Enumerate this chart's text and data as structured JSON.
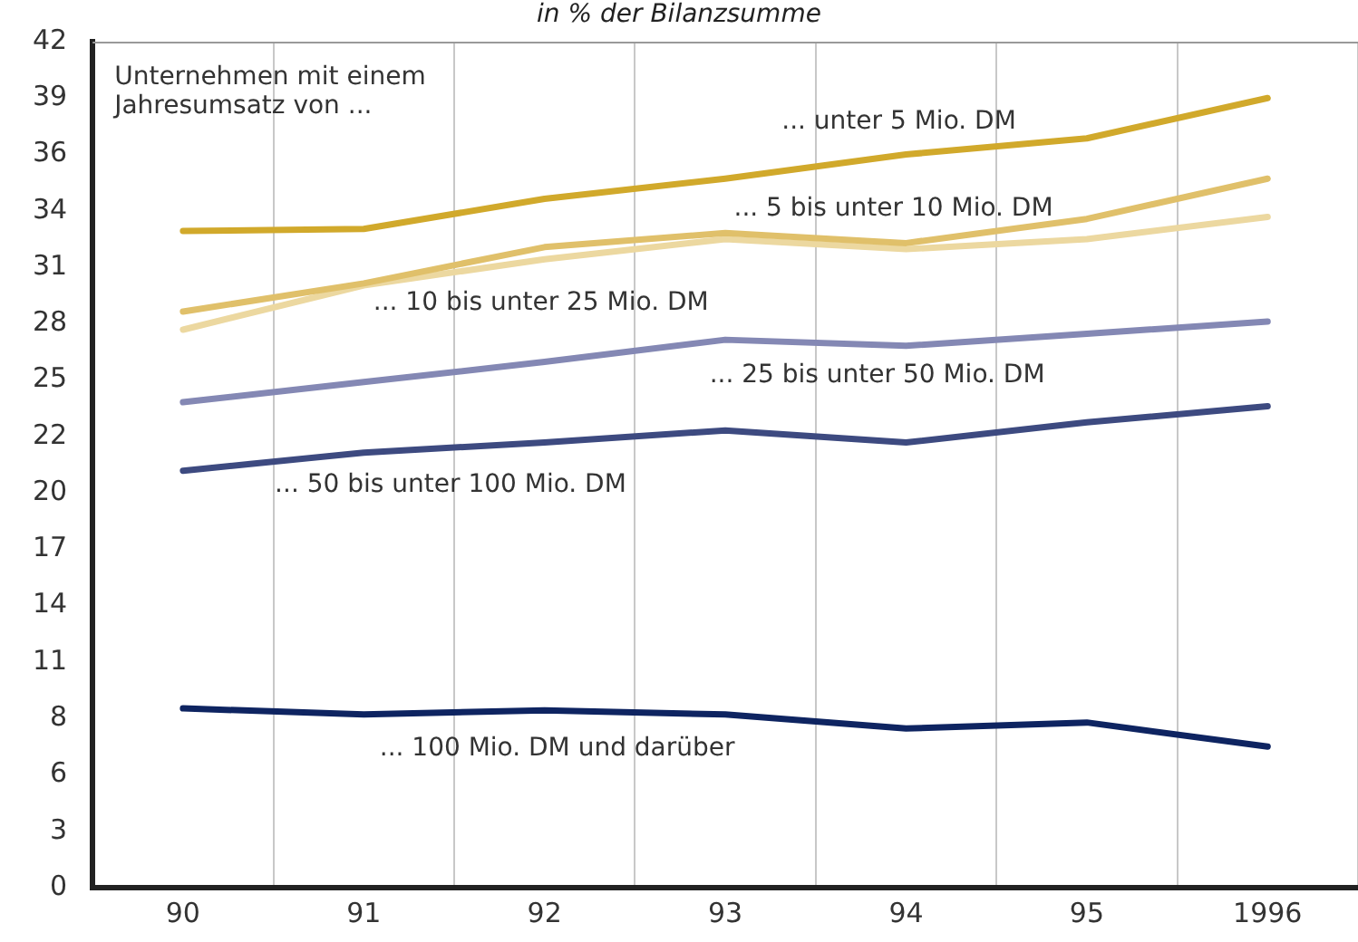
{
  "chart_data": {
    "type": "line",
    "title": "in % der Bilanzsumme",
    "categories": [
      "90",
      "91",
      "92",
      "93",
      "94",
      "95",
      "1996"
    ],
    "series": [
      {
        "name": "... unter 5 Mio. DM",
        "color": "#d1a92b",
        "values": [
          32.6,
          32.7,
          34.2,
          35.2,
          36.4,
          37.2,
          39.2
        ]
      },
      {
        "name": "... 5 bis unter 10 Mio. DM",
        "color": "#e0c06a",
        "values": [
          28.6,
          30.0,
          31.8,
          32.5,
          32.0,
          33.2,
          35.2
        ]
      },
      {
        "name": "... 10 bis unter 25 Mio. DM",
        "color": "#ecd8a0",
        "values": [
          27.7,
          29.9,
          31.2,
          32.2,
          31.7,
          32.2,
          33.3
        ]
      },
      {
        "name": "... 25 bis unter 50 Mio. DM",
        "color": "#8488b4",
        "values": [
          24.1,
          25.1,
          26.1,
          27.2,
          26.9,
          27.5,
          28.1
        ]
      },
      {
        "name": "... 50 bis unter 100 Mio. DM",
        "color": "#3d4a80",
        "values": [
          20.7,
          21.6,
          22.1,
          22.7,
          22.1,
          23.1,
          23.9
        ]
      },
      {
        "name": "... 100 Mio. DM und darüber",
        "color": "#0e2461",
        "values": [
          8.9,
          8.6,
          8.8,
          8.6,
          7.9,
          8.2,
          7.0
        ]
      }
    ],
    "ylim": [
      0,
      42
    ],
    "yticks": [
      0,
      {
        "value": 2.8,
        "label": "3"
      },
      {
        "value": 5.6,
        "label": "6"
      },
      {
        "value": 8.4,
        "label": "8"
      },
      {
        "value": 11.2,
        "label": "11"
      },
      14,
      {
        "value": 16.8,
        "label": "17"
      },
      {
        "value": 19.6,
        "label": "20"
      },
      {
        "value": 22.4,
        "label": "22"
      },
      {
        "value": 25.2,
        "label": "25"
      },
      28,
      {
        "value": 30.8,
        "label": "31"
      },
      {
        "value": 33.6,
        "label": "34"
      },
      {
        "value": 36.4,
        "label": "36"
      },
      {
        "value": 39.2,
        "label": "39"
      },
      42
    ],
    "annotations": [
      "Unternehmen mit einem\nJahresumsatz von ..."
    ],
    "grid": "x",
    "legend": false,
    "marker": "none",
    "line_style": "solid"
  }
}
